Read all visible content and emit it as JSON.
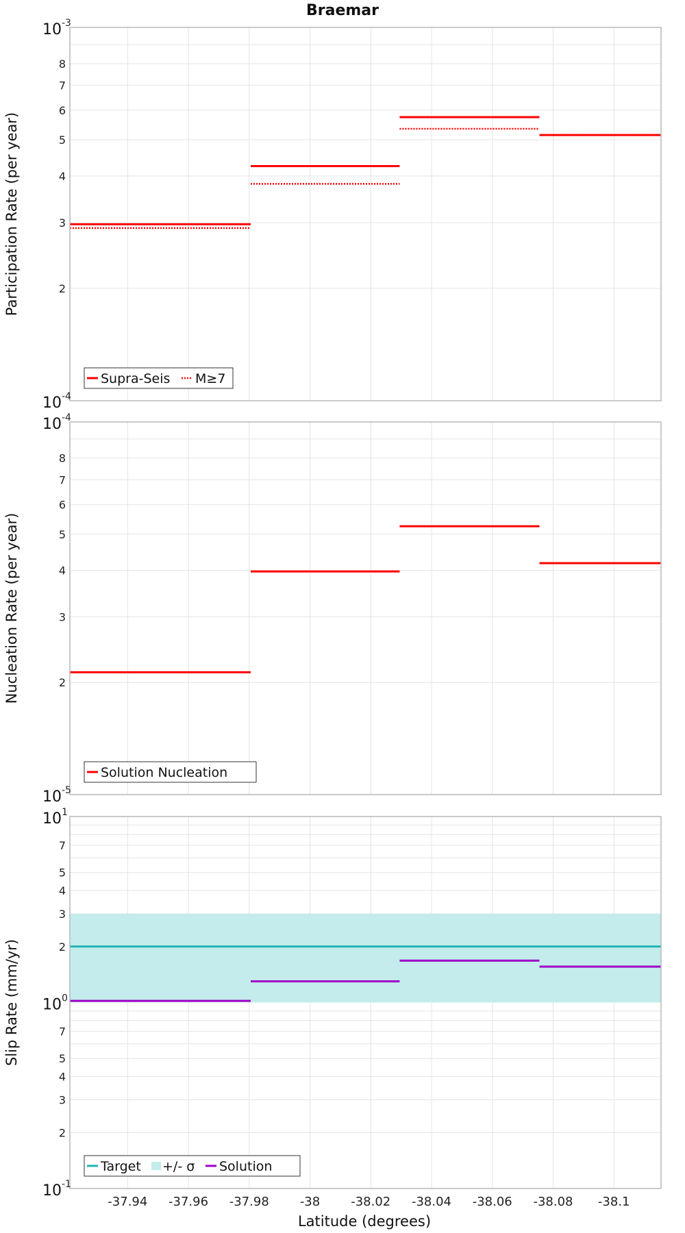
{
  "title": "Braemar",
  "xlabel": "Latitude (degrees)",
  "x_ticks": [
    -37.94,
    -37.96,
    -37.98,
    -38,
    -38.02,
    -38.04,
    -38.06,
    -38.08,
    -38.1
  ],
  "x_tick_labels": [
    "-37.94",
    "-37.96",
    "-37.98",
    "-38",
    "-38.02",
    "-38.04",
    "-38.06",
    "-38.08",
    "-38.1"
  ],
  "xlim": [
    -37.921,
    -38.1155
  ],
  "colors": {
    "red": "#ff0000",
    "target": "#1fb2b2",
    "band": "#c4ecec",
    "solution": "#a000c8",
    "grid": "#e4e4e4",
    "frame": "#b8b8b8"
  },
  "chart_data": [
    {
      "type": "line",
      "scale": "log",
      "ylabel": "Participation Rate (per year)",
      "ylim": [
        0.0001,
        0.001
      ],
      "y_decades": [
        {
          "base": "10",
          "exp": "-4"
        },
        {
          "base": "10",
          "exp": "-3"
        }
      ],
      "y_minor_labels": [
        "2",
        "3",
        "4",
        "5",
        "6",
        "7",
        "8"
      ],
      "legend": {
        "position": "bottom-left",
        "items": [
          "Supra-Seis",
          "M≥7"
        ]
      },
      "series": [
        {
          "name": "Supra-Seis",
          "style": "solid",
          "segments": [
            {
              "x": [
                -37.921,
                -37.9805
              ],
              "y": 0.000297
            },
            {
              "x": [
                -37.9805,
                -38.0295
              ],
              "y": 0.000425
            },
            {
              "x": [
                -38.0295,
                -38.0755
              ],
              "y": 0.000575
            },
            {
              "x": [
                -38.0755,
                -38.1155
              ],
              "y": 0.000515
            }
          ]
        },
        {
          "name": "M≥7",
          "style": "dotted",
          "segments": [
            {
              "x": [
                -37.921,
                -37.9805
              ],
              "y": 0.00029
            },
            {
              "x": [
                -37.9805,
                -38.0295
              ],
              "y": 0.000381
            },
            {
              "x": [
                -38.0295,
                -38.0755
              ],
              "y": 0.000535
            },
            {
              "x": [
                -38.0755,
                -38.1155
              ],
              "y": 0.000515
            }
          ]
        }
      ]
    },
    {
      "type": "line",
      "scale": "log",
      "ylabel": "Nucleation Rate (per year)",
      "ylim": [
        1e-05,
        0.0001
      ],
      "y_decades": [
        {
          "base": "10",
          "exp": "-5"
        },
        {
          "base": "10",
          "exp": "-4"
        }
      ],
      "y_minor_labels": [
        "2",
        "3",
        "4",
        "5",
        "6",
        "7",
        "8"
      ],
      "legend": {
        "position": "bottom-left",
        "items": [
          "Solution Nucleation"
        ]
      },
      "series": [
        {
          "name": "Solution Nucleation",
          "style": "solid",
          "segments": [
            {
              "x": [
                -37.921,
                -37.9805
              ],
              "y": 2.13e-05
            },
            {
              "x": [
                -37.9805,
                -38.0295
              ],
              "y": 3.97e-05
            },
            {
              "x": [
                -38.0295,
                -38.0755
              ],
              "y": 5.25e-05
            },
            {
              "x": [
                -38.0755,
                -38.1155
              ],
              "y": 4.18e-05
            }
          ]
        }
      ]
    },
    {
      "type": "line",
      "scale": "log",
      "ylabel": "Slip Rate (mm/yr)",
      "ylim": [
        0.1,
        10
      ],
      "y_decades": [
        {
          "base": "10",
          "exp": "-1"
        },
        {
          "base": "10",
          "exp": "0"
        },
        {
          "base": "10",
          "exp": "1"
        }
      ],
      "y_minor_labels": [
        "2",
        "3",
        "4",
        "5",
        "7"
      ],
      "y_minor_values": [
        2,
        3,
        4,
        5,
        7
      ],
      "legend": {
        "position": "bottom-left",
        "items": [
          "Target",
          "+/- σ",
          "Solution"
        ]
      },
      "band": {
        "name": "+/- σ",
        "low": 1.0,
        "high": 3.0
      },
      "series": [
        {
          "name": "Target",
          "style": "solid",
          "segments": [
            {
              "x": [
                -37.921,
                -38.1155
              ],
              "y": 2.0
            }
          ]
        },
        {
          "name": "Solution",
          "style": "solid",
          "segments": [
            {
              "x": [
                -37.921,
                -37.9805
              ],
              "y": 1.02
            },
            {
              "x": [
                -37.9805,
                -38.0295
              ],
              "y": 1.3
            },
            {
              "x": [
                -38.0295,
                -38.0755
              ],
              "y": 1.68
            },
            {
              "x": [
                -38.0755,
                -38.1155
              ],
              "y": 1.56
            }
          ]
        }
      ]
    }
  ]
}
